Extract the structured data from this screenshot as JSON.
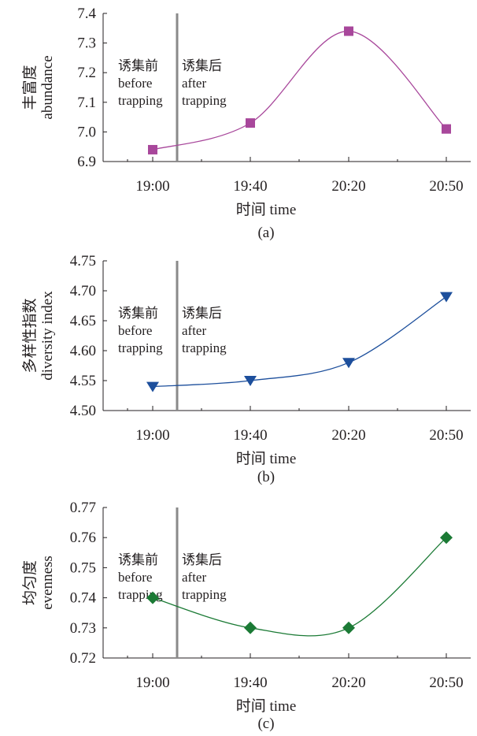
{
  "chart_data": [
    {
      "id": "a",
      "type": "line",
      "caption": "(a)",
      "categories": [
        "19:00",
        "19:40",
        "20:20",
        "20:50"
      ],
      "xlabel": "时间 time",
      "ylabel_cn": "丰富度",
      "ylabel_en": "abundance",
      "ylim": [
        6.9,
        7.4
      ],
      "yticks": [
        "6.9",
        "7.0",
        "7.1",
        "7.2",
        "7.3",
        "7.4"
      ],
      "series": [
        {
          "values": [
            6.94,
            7.03,
            7.34,
            7.01
          ],
          "color": "#a8479b",
          "marker": "square"
        }
      ],
      "annotations": {
        "before_cn": "诱集前",
        "before_en1": "before",
        "before_en2": "trapping",
        "after_cn": "诱集后",
        "after_en1": "after",
        "after_en2": "trapping"
      }
    },
    {
      "id": "b",
      "type": "line",
      "caption": "(b)",
      "categories": [
        "19:00",
        "19:40",
        "20:20",
        "20:50"
      ],
      "xlabel": "时间 time",
      "ylabel_cn": "多样性指数",
      "ylabel_en": "diversity index",
      "ylim": [
        4.5,
        4.75
      ],
      "yticks": [
        "4.50",
        "4.55",
        "4.60",
        "4.65",
        "4.70",
        "4.75"
      ],
      "series": [
        {
          "values": [
            4.54,
            4.55,
            4.58,
            4.69
          ],
          "color": "#1d4f9c",
          "marker": "triangle-down"
        }
      ],
      "annotations": {
        "before_cn": "诱集前",
        "before_en1": "before",
        "before_en2": "trapping",
        "after_cn": "诱集后",
        "after_en1": "after",
        "after_en2": "trapping"
      }
    },
    {
      "id": "c",
      "type": "line",
      "caption": "(c)",
      "categories": [
        "19:00",
        "19:40",
        "20:20",
        "20:50"
      ],
      "xlabel": "时间 time",
      "ylabel_cn": "均匀度",
      "ylabel_en": "evenness",
      "ylim": [
        0.72,
        0.77
      ],
      "yticks": [
        "0.72",
        "0.73",
        "0.74",
        "0.75",
        "0.76",
        "0.77"
      ],
      "series": [
        {
          "values": [
            0.74,
            0.73,
            0.73,
            0.76
          ],
          "color": "#1b7a35",
          "marker": "diamond"
        }
      ],
      "annotations": {
        "before_cn": "诱集前",
        "before_en1": "before",
        "before_en2": "trapping",
        "after_cn": "诱集后",
        "after_en1": "after",
        "after_en2": "trapping"
      }
    }
  ]
}
